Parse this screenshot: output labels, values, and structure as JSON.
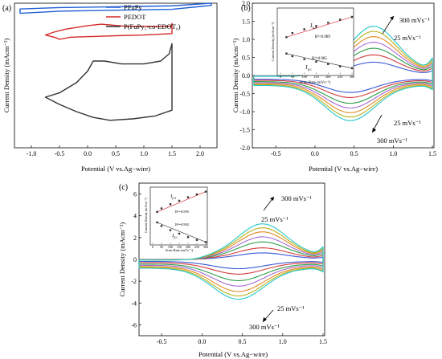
{
  "chart_data": [
    {
      "panel": "(a)",
      "type": "line",
      "xlabel": "Potential (V vs.Ag−wire)",
      "ylabel": "Current Density (mAcm⁻²)",
      "xlim": [
        -1.3,
        2.3
      ],
      "xticks": [
        -1.0,
        -0.5,
        0.0,
        0.5,
        1.0,
        1.5,
        2.0
      ],
      "yticks": [],
      "legend": "top-right",
      "series": [
        {
          "name": "PFuPy",
          "color": "#1f5fd6",
          "curve": {
            "xmin": -1.2,
            "xmax": 2.2,
            "upper": [
              [
                -1.2,
                0.96
              ],
              [
                -0.5,
                0.97
              ],
              [
                0.5,
                0.975
              ],
              [
                1.5,
                0.982
              ],
              [
                2.2,
                1.0
              ]
            ],
            "lower": [
              [
                -1.2,
                0.93
              ],
              [
                -0.5,
                0.945
              ],
              [
                0.5,
                0.952
              ],
              [
                1.5,
                0.958
              ],
              [
                2.2,
                0.985
              ]
            ]
          }
        },
        {
          "name": "PEDOT",
          "color": "#d42a2a",
          "curve": {
            "xmin": -0.75,
            "xmax": 1.5,
            "upper": [
              [
                -0.75,
                0.78
              ],
              [
                -0.6,
                0.8
              ],
              [
                -0.4,
                0.82
              ],
              [
                0.0,
                0.845
              ],
              [
                0.25,
                0.855
              ],
              [
                0.7,
                0.84
              ],
              [
                1.48,
                0.84
              ],
              [
                1.5,
                0.86
              ]
            ],
            "lower": [
              [
                -0.75,
                0.78
              ],
              [
                -0.55,
                0.76
              ],
              [
                -0.5,
                0.75
              ],
              [
                -0.3,
                0.765
              ],
              [
                0.5,
                0.775
              ],
              [
                1.0,
                0.78
              ],
              [
                1.5,
                0.79
              ]
            ]
          }
        },
        {
          "name": "P(FuPy₁-co-EDOT₀)",
          "color": "#333333",
          "curve": {
            "xmin": -0.75,
            "xmax": 1.5,
            "upper": [
              [
                -0.75,
                0.35
              ],
              [
                -0.5,
                0.38
              ],
              [
                -0.2,
                0.45
              ],
              [
                0.0,
                0.53
              ],
              [
                0.1,
                0.6
              ],
              [
                0.3,
                0.6
              ],
              [
                0.6,
                0.58
              ],
              [
                1.0,
                0.58
              ],
              [
                1.3,
                0.6
              ],
              [
                1.45,
                0.65
              ],
              [
                1.5,
                0.72
              ]
            ],
            "lower": [
              [
                -0.75,
                0.35
              ],
              [
                -0.5,
                0.3
              ],
              [
                -0.2,
                0.25
              ],
              [
                0.1,
                0.21
              ],
              [
                0.4,
                0.19
              ],
              [
                0.8,
                0.2
              ],
              [
                1.2,
                0.22
              ],
              [
                1.5,
                0.26
              ]
            ]
          }
        }
      ]
    },
    {
      "panel": "(b)",
      "type": "line",
      "xlabel": "Potential (V vs.Ag−wire)",
      "ylabel": "Current Density (mAcm⁻²)",
      "xlim": [
        -0.8,
        1.52
      ],
      "ylim": [
        -2.0,
        2.0
      ],
      "xticks": [
        -0.5,
        0.0,
        0.5,
        1.0,
        1.5
      ],
      "yticks": [
        -2.0,
        -1.5,
        -1.0,
        -0.5,
        0.0,
        0.5,
        1.0,
        1.5,
        2.0
      ],
      "scan_rates": [
        25,
        50,
        100,
        150,
        200,
        250,
        300
      ],
      "colors": [
        "#3a57d6",
        "#d33a3a",
        "#2e9e48",
        "#a46ad3",
        "#e68a22",
        "#b8b21e",
        "#23c7c7"
      ],
      "peak_anodic": [
        0.4,
        0.62,
        0.82,
        1.0,
        1.17,
        1.33,
        1.48
      ],
      "peak_cathodic": [
        -0.47,
        -0.61,
        -0.77,
        -0.9,
        -1.03,
        -1.15,
        -1.25
      ],
      "annotations": {
        "top_high": "300 mVs⁻¹",
        "top_low": "25 mVs⁻¹",
        "bottom_low": "25 mVs⁻¹",
        "bottom_high": "300 mVs⁻¹"
      },
      "inset": {
        "xlabel": "Scan Rate (mVs⁻¹)",
        "ylabel": "Current Density (mAcm⁻²)",
        "xlim": [
          0,
          300
        ],
        "xticks": [
          0,
          50,
          100,
          150,
          200,
          250,
          300
        ],
        "anodic_label": "J",
        "anodic_label_sub": "p,a",
        "anodic_r2": "R²=0.989",
        "cathodic_label": "J",
        "cathodic_label_sub": "p,c",
        "cathodic_r2": "R²=0.985",
        "anodic_values": [
          0.4,
          0.62,
          0.82,
          1.0,
          1.17,
          1.33,
          1.48
        ],
        "cathodic_values": [
          -0.47,
          -0.61,
          -0.77,
          -0.9,
          -1.03,
          -1.15,
          -1.25
        ],
        "x": [
          25,
          50,
          100,
          150,
          200,
          250,
          300
        ]
      }
    },
    {
      "panel": "(c)",
      "type": "line",
      "xlabel": "Potential (V vs.Ag−wire)",
      "ylabel": "Current Density (mAcm⁻²)",
      "xlim": [
        -0.78,
        1.52
      ],
      "ylim": [
        -7.0,
        7.0
      ],
      "xticks": [
        -0.5,
        0.0,
        0.5,
        1.0,
        1.5
      ],
      "yticks": [
        -6,
        -4,
        -2,
        0,
        2,
        4,
        6
      ],
      "scan_rates": [
        25,
        50,
        100,
        150,
        200,
        250,
        300
      ],
      "colors": [
        "#3a57d6",
        "#d33a3a",
        "#2e9e48",
        "#a46ad3",
        "#e68a22",
        "#b8b21e",
        "#23c7c7"
      ],
      "peak_anodic": [
        0.65,
        1.15,
        1.75,
        2.25,
        2.75,
        3.15,
        3.55
      ],
      "peak_cathodic": [
        -0.85,
        -1.35,
        -1.95,
        -2.45,
        -2.95,
        -3.35,
        -3.65
      ],
      "annotations": {
        "top_high": "300 mVs⁻¹",
        "top_low": "25 mVs⁻¹",
        "bottom_low": "25 mVs⁻¹",
        "bottom_high": "300 mVs⁻¹"
      },
      "inset": {
        "xlabel": "Scan Rate (mVs⁻¹)",
        "ylabel": "Current Density (mAcm⁻²)",
        "xlim": [
          0,
          300
        ],
        "xticks": [
          0,
          50,
          100,
          150,
          200,
          250,
          300
        ],
        "anodic_label": "J",
        "anodic_label_sub": "p,a",
        "anodic_r2": "R²=0.995",
        "cathodic_label": "J",
        "cathodic_label_sub": "p,c",
        "cathodic_r2": "R²=0.992",
        "anodic_values": [
          0.65,
          1.15,
          1.75,
          2.25,
          2.75,
          3.15,
          3.55
        ],
        "cathodic_values": [
          -0.85,
          -1.35,
          -1.95,
          -2.45,
          -2.95,
          -3.35,
          -3.65
        ],
        "x": [
          25,
          50,
          100,
          150,
          200,
          250,
          300
        ]
      }
    }
  ]
}
